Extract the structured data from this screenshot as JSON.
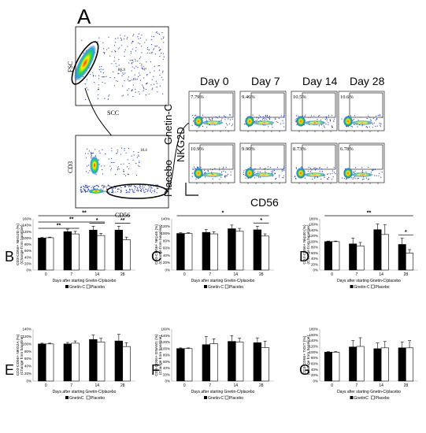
{
  "figure": {
    "panel_A": {
      "letter": "A",
      "scatter1": {
        "y_label": "FSC",
        "x_label": "SCC",
        "gate_value": "86.3"
      },
      "scatter2": {
        "y_label": "CD3",
        "x_label": "CD56",
        "gate_value": "18.4"
      },
      "day_headers": [
        "Day 0",
        "Day 7",
        "Day 14",
        "Day 28"
      ],
      "row_labels": [
        "Gnetin-C",
        "Placebo"
      ],
      "y_axis_marker": "NKG2D",
      "x_axis_marker": "CD56",
      "gnetin_percentages": [
        "7.79%",
        "9.46%",
        "10.5%",
        "10.6%"
      ],
      "placebo_percentages": [
        "10.9%",
        "9.90%",
        "8.73%",
        "6.78%"
      ]
    },
    "common": {
      "xlabel": "Days after starting Gnetin-C/placebo",
      "ylabel_sub": "(Change from baseline)",
      "days": [
        "0",
        "7",
        "14",
        "28"
      ],
      "ticks": [
        "0%",
        "20%",
        "40%",
        "60%",
        "80%",
        "100%",
        "120%",
        "140%",
        "160%"
      ],
      "colors": {
        "gnetin": "#000000",
        "placebo": "#ffffff"
      }
    }
  },
  "chart_data": [
    {
      "panel": "B",
      "type": "bar",
      "ylabel": "CD3-CD56+ NKG2D (%)",
      "categories": [
        "0",
        "7",
        "14",
        "28"
      ],
      "ylim": [
        0,
        160
      ],
      "legend": [
        "Gnetin-C",
        "Placebo"
      ],
      "series": [
        {
          "name": "Gnetin-C",
          "values": [
            100,
            120,
            125,
            125
          ],
          "errors": [
            2,
            8,
            12,
            12
          ]
        },
        {
          "name": "Placebo",
          "values": [
            101,
            113,
            108,
            95
          ],
          "errors": [
            2,
            8,
            7,
            8
          ]
        }
      ],
      "significance": [
        {
          "label": "**",
          "from": "0",
          "to": "28",
          "level": "top"
        },
        {
          "label": "**",
          "from": "0",
          "to": "14",
          "level": "mid"
        },
        {
          "label": "**",
          "from": "0",
          "to": "7",
          "level": "low"
        },
        {
          "label": "*",
          "day": "14"
        },
        {
          "label": "**",
          "day": "28"
        }
      ]
    },
    {
      "panel": "C",
      "type": "bar",
      "ylabel": "CD3-CD56+ NKp46 (%)",
      "categories": [
        "0",
        "7",
        "14",
        "28"
      ],
      "ylim": [
        0,
        140
      ],
      "legend": [
        "Gnetin-C",
        "Placebo"
      ],
      "series": [
        {
          "name": "Gnetin-C",
          "values": [
            100,
            103,
            113,
            110
          ],
          "errors": [
            2,
            8,
            10,
            10
          ]
        },
        {
          "name": "Placebo",
          "values": [
            100,
            99,
            106,
            93
          ],
          "errors": [
            2,
            6,
            8,
            6
          ]
        }
      ],
      "significance": [
        {
          "label": "*",
          "from": "0",
          "to": "28",
          "level": "top"
        },
        {
          "label": "*",
          "day": "28"
        }
      ]
    },
    {
      "panel": "D",
      "type": "bar",
      "ylabel": "CD3-CD56+ Nkp30 (%)",
      "categories": [
        "0",
        "7",
        "14",
        "28"
      ],
      "ylim": [
        0,
        180
      ],
      "legend": [
        "Gnetin-C",
        "Placebo"
      ],
      "series": [
        {
          "name": "Gnetin-C",
          "values": [
            100,
            92,
            142,
            90
          ],
          "errors": [
            2,
            20,
            20,
            22
          ]
        },
        {
          "name": "Placebo",
          "values": [
            100,
            85,
            125,
            60
          ],
          "errors": [
            2,
            12,
            35,
            12
          ]
        }
      ],
      "significance": [
        {
          "label": "**",
          "from": "0",
          "to": "28",
          "level": "top"
        },
        {
          "label": "*",
          "day": "28"
        }
      ]
    },
    {
      "panel": "E",
      "type": "bar",
      "ylabel": "CD3-CD56+ NKG2A (%)",
      "categories": [
        "0",
        "7",
        "14",
        "28"
      ],
      "ylim": [
        0,
        140
      ],
      "legend": [
        "GnetinC",
        "Placebo"
      ],
      "series": [
        {
          "name": "GnetinC",
          "values": [
            100,
            100,
            112,
            108
          ],
          "errors": [
            2,
            4,
            12,
            18
          ]
        },
        {
          "name": "Placebo",
          "values": [
            100,
            102,
            105,
            93
          ],
          "errors": [
            2,
            6,
            10,
            10
          ]
        }
      ],
      "significance": []
    },
    {
      "panel": "F",
      "type": "bar",
      "ylabel": "CD3-CD56+ DNAM1 (%)",
      "categories": [
        "0",
        "7",
        "14",
        "28"
      ],
      "ylim": [
        0,
        160
      ],
      "legend": [
        "Gnetin-C",
        "Placebo"
      ],
      "series": [
        {
          "name": "Gnetin-C",
          "values": [
            100,
            112,
            122,
            118
          ],
          "errors": [
            2,
            25,
            18,
            15
          ]
        },
        {
          "name": "Placebo",
          "values": [
            100,
            115,
            120,
            103
          ],
          "errors": [
            2,
            15,
            12,
            20
          ]
        }
      ],
      "significance": []
    },
    {
      "panel": "G",
      "type": "bar",
      "ylabel": "CD3-CD56+ TIGIT (%)",
      "categories": [
        "0",
        "7",
        "14",
        "28"
      ],
      "ylim": [
        0,
        180
      ],
      "legend": [
        "GnetinC",
        "Placebo"
      ],
      "series": [
        {
          "name": "GnetinC",
          "values": [
            100,
            118,
            112,
            115
          ],
          "errors": [
            2,
            22,
            20,
            20
          ]
        },
        {
          "name": "Placebo",
          "values": [
            100,
            120,
            115,
            115
          ],
          "errors": [
            2,
            30,
            22,
            25
          ]
        }
      ],
      "significance": []
    }
  ]
}
